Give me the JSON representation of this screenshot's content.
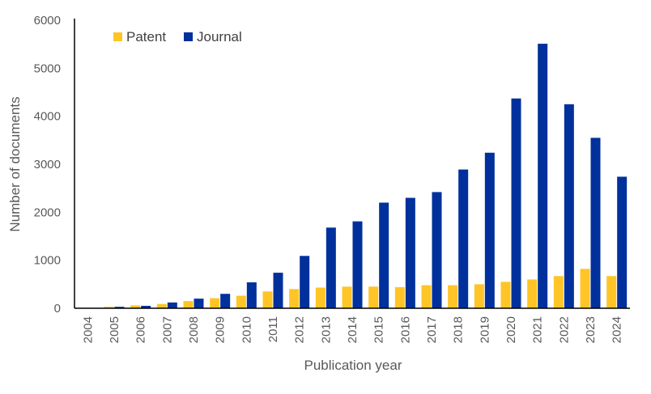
{
  "chart_data": {
    "type": "bar",
    "title": "",
    "xlabel": "Publication year",
    "ylabel": "Number of documents",
    "ylim": [
      0,
      6000
    ],
    "yticks": [
      "0",
      "1000",
      "2000",
      "3000",
      "4000",
      "5000",
      "6000"
    ],
    "grid": false,
    "legend_position": "top-left",
    "categories": [
      "2004",
      "2005",
      "2006",
      "2007",
      "2008",
      "2009",
      "2010",
      "2011",
      "2012",
      "2013",
      "2014",
      "2015",
      "2016",
      "2017",
      "2018",
      "2019",
      "2020",
      "2021",
      "2022",
      "2023",
      "2024"
    ],
    "series": [
      {
        "name": "Patent",
        "color": "#FFC527",
        "values": [
          5,
          30,
          60,
          90,
          150,
          210,
          260,
          350,
          400,
          430,
          450,
          450,
          440,
          480,
          480,
          500,
          550,
          600,
          670,
          820,
          670
        ]
      },
      {
        "name": "Journal",
        "color": "#00309C",
        "values": [
          5,
          30,
          50,
          120,
          200,
          300,
          540,
          740,
          1090,
          1680,
          1810,
          2200,
          2300,
          2420,
          2890,
          3240,
          4370,
          5510,
          4250,
          3550,
          2740
        ]
      }
    ]
  }
}
